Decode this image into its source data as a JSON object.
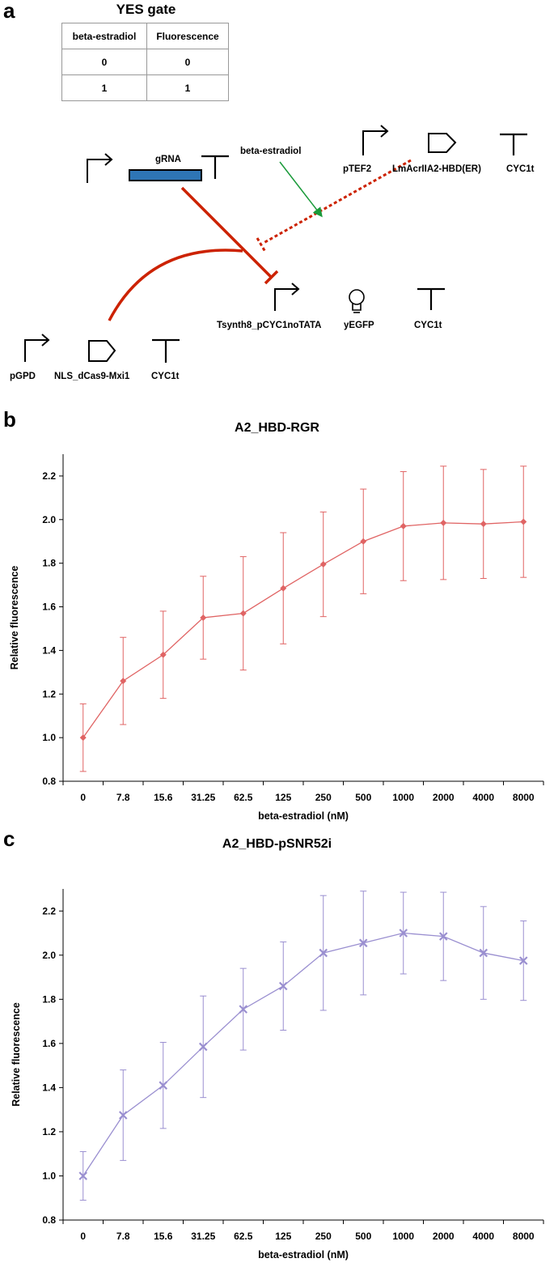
{
  "panels": {
    "a": "a",
    "b": "b",
    "c": "c"
  },
  "truth_table": {
    "title": "YES gate",
    "headers": [
      "beta-estradiol",
      "Fluorescence"
    ],
    "rows": [
      [
        "0",
        "0"
      ],
      [
        "1",
        "1"
      ]
    ]
  },
  "diagram": {
    "inducer": "beta-estradiol",
    "gRNA": "gRNA",
    "pTEF2": "pTEF2",
    "acr": "LmAcrIIA2-HBD(ER)",
    "cyc1t_top": "CYC1t",
    "tsynth": "Tsynth8_pCYC1noTATA",
    "yegfp": "yEGFP",
    "cyc1t_mid": "CYC1t",
    "pgpd": "pGPD",
    "dcas9": "NLS_dCas9-Mxi1",
    "cyc1t_bot": "CYC1t",
    "colors": {
      "repression": "#cc2200",
      "induction": "#1a9a3a",
      "gRNA_box": "#2e75b6"
    }
  },
  "chart_data": [
    {
      "type": "line",
      "title": "A2_HBD-RGR",
      "xlabel": "beta-estradiol (nM)",
      "ylabel": "Relative fluorescence",
      "categories": [
        "0",
        "7.8",
        "15.6",
        "31.25",
        "62.5",
        "125",
        "250",
        "500",
        "1000",
        "2000",
        "4000",
        "8000"
      ],
      "values": [
        1.0,
        1.26,
        1.38,
        1.55,
        1.57,
        1.685,
        1.795,
        1.9,
        1.97,
        1.985,
        1.98,
        1.99
      ],
      "errors": [
        0.155,
        0.2,
        0.2,
        0.19,
        0.26,
        0.255,
        0.24,
        0.24,
        0.25,
        0.26,
        0.25,
        0.255
      ],
      "ylim": [
        0.8,
        2.3
      ],
      "yticks": [
        "0.8",
        "1.0",
        "1.2",
        "1.4",
        "1.6",
        "1.8",
        "2.0",
        "2.2"
      ],
      "marker": "diamond",
      "color": "#e06464",
      "grid": false
    },
    {
      "type": "line",
      "title": "A2_HBD-pSNR52i",
      "xlabel": "beta-estradiol (nM)",
      "ylabel": "Relative fluorescence",
      "categories": [
        "0",
        "7.8",
        "15.6",
        "31.25",
        "62.5",
        "125",
        "250",
        "500",
        "1000",
        "2000",
        "4000",
        "8000"
      ],
      "values": [
        1.0,
        1.275,
        1.41,
        1.585,
        1.755,
        1.86,
        2.01,
        2.055,
        2.1,
        2.085,
        2.01,
        1.975
      ],
      "errors": [
        0.11,
        0.205,
        0.195,
        0.23,
        0.185,
        0.2,
        0.26,
        0.235,
        0.185,
        0.2,
        0.21,
        0.18
      ],
      "ylim": [
        0.8,
        2.3
      ],
      "yticks": [
        "0.8",
        "1.0",
        "1.2",
        "1.4",
        "1.6",
        "1.8",
        "2.0",
        "2.2"
      ],
      "marker": "x",
      "color": "#9a8fd0",
      "grid": false
    }
  ]
}
